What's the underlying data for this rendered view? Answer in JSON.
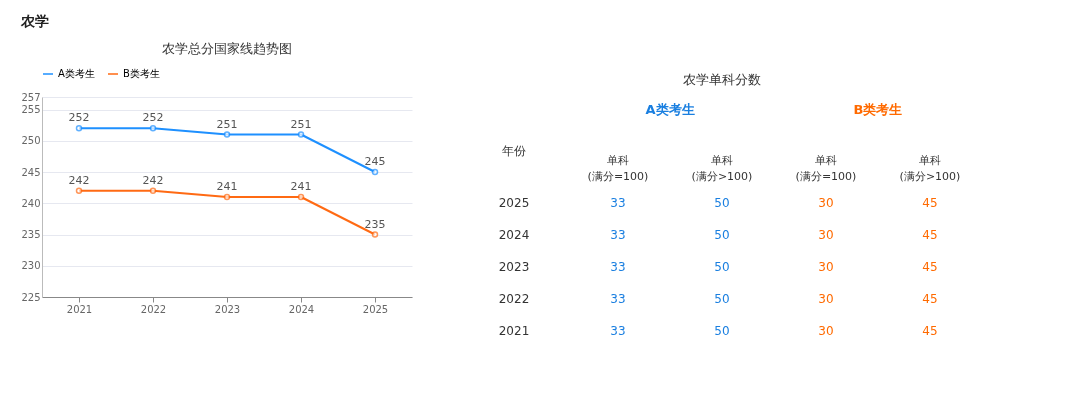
{
  "chart_data": [
    {
      "type": "line",
      "title": "农学总分国家线趋势图",
      "annotations": [
        "农学"
      ],
      "categories": [
        "2021",
        "2022",
        "2023",
        "2024",
        "2025"
      ],
      "series": [
        {
          "name": "A类考生",
          "color": "#1e90ff",
          "values": [
            252,
            252,
            251,
            251,
            245
          ]
        },
        {
          "name": "B类考生",
          "color": "#ff6a13",
          "values": [
            242,
            242,
            241,
            241,
            235
          ]
        }
      ],
      "ylim": [
        225,
        257
      ],
      "yticks": [
        225,
        230,
        235,
        240,
        245,
        250,
        255,
        257
      ],
      "grid": "y",
      "legend": "top",
      "marker": "circle",
      "line_style": "solid",
      "data_labels": true
    },
    {
      "type": "heatmap",
      "title": "农学单科分数",
      "ylabel": "年份",
      "annotations": [
        "A类考生",
        "B类考生"
      ],
      "categories": [
        "单科\n(满分=100)",
        "单科\n(满分>100)",
        "单科\n(满分=100)",
        "单科\n(满分>100)"
      ],
      "colors": [
        "#1a7fe0",
        "#1a7fe0",
        "#ff6a00",
        "#ff6a00"
      ],
      "y_categories": [
        "2025",
        "2024",
        "2023",
        "2022",
        "2021"
      ],
      "data_labels": true,
      "cells": [
        [
          33,
          50,
          30,
          45
        ],
        [
          33,
          50,
          30,
          45
        ],
        [
          33,
          50,
          30,
          45
        ],
        [
          33,
          50,
          30,
          45
        ],
        [
          33,
          50,
          30,
          45
        ]
      ]
    }
  ]
}
